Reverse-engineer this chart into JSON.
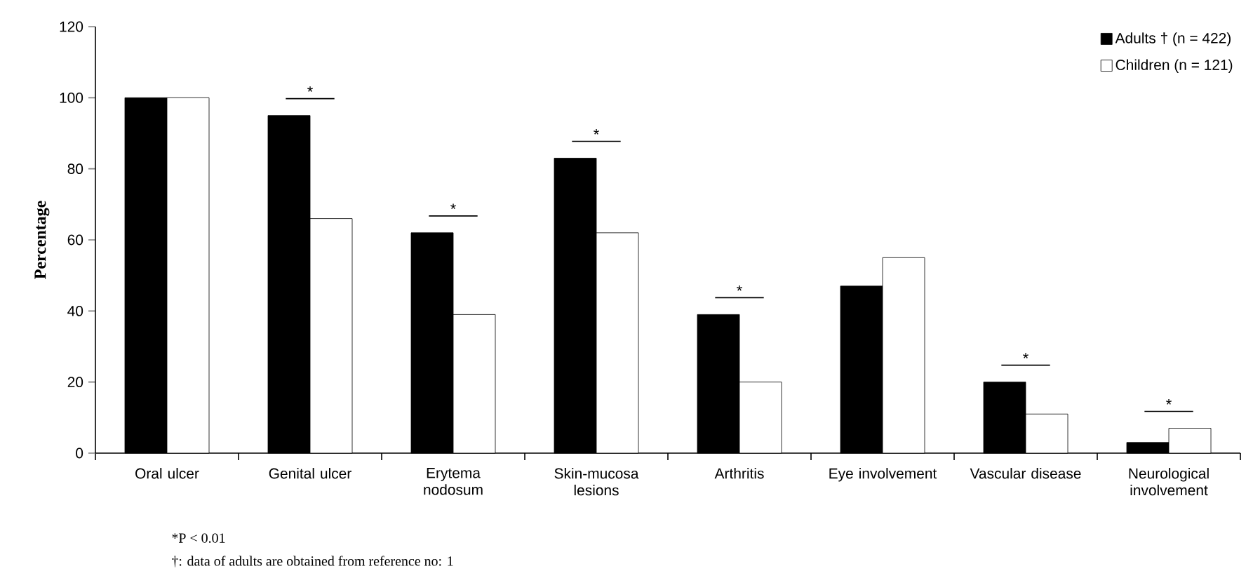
{
  "chart_data": {
    "type": "bar",
    "ylabel": "Percentage",
    "categories": [
      "Oral ulcer",
      "Genital ulcer",
      "Erytema nodosum",
      "Skin-mucosa lesions",
      "Arthritis",
      "Eye involvement",
      "Vascular disease",
      "Neurological involvement"
    ],
    "series": [
      {
        "name": "Adults † (n = 422)",
        "color": "#000000",
        "values": [
          100,
          95,
          62,
          83,
          39,
          47,
          20,
          3
        ]
      },
      {
        "name": "Children (n = 121)",
        "color": "#ffffff",
        "values": [
          100,
          66,
          39,
          62,
          20,
          55,
          11,
          7
        ]
      }
    ],
    "ylim": [
      0,
      120
    ],
    "yticks": [
      0,
      20,
      40,
      60,
      80,
      100,
      120
    ],
    "legend": "top right",
    "annotations": [
      "*",
      "*",
      "*",
      "*",
      "*",
      "*",
      "*P  < 0.01",
      "†: data of adults are obtained from reference no: 1"
    ]
  }
}
